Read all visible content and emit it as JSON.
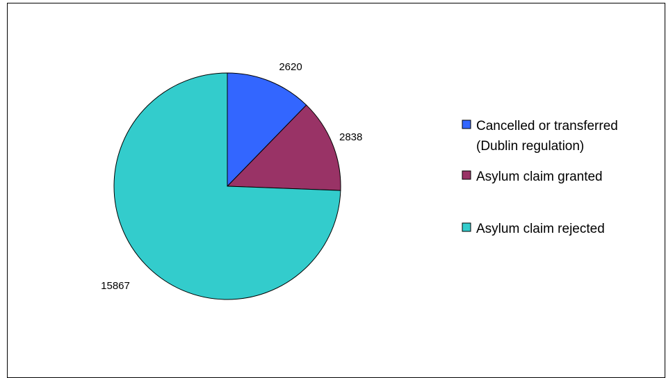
{
  "chart_data": {
    "type": "pie",
    "title": "",
    "categories": [
      "Cancelled or transferred (Dublin regulation)",
      "Asylum claim granted",
      "Asylum claim rejected"
    ],
    "values": [
      2620,
      2838,
      15867
    ],
    "colors": [
      "#3366FF",
      "#993366",
      "#33CCCC"
    ],
    "legend_position": "right",
    "legend": [
      {
        "lines": [
          "Cancelled or transferred",
          "(Dublin regulation)"
        ],
        "color": "#3366FF"
      },
      {
        "lines": [
          "Asylum claim granted"
        ],
        "color": "#993366"
      },
      {
        "lines": [
          "Asylum claim rejected"
        ],
        "color": "#33CCCC"
      }
    ]
  }
}
